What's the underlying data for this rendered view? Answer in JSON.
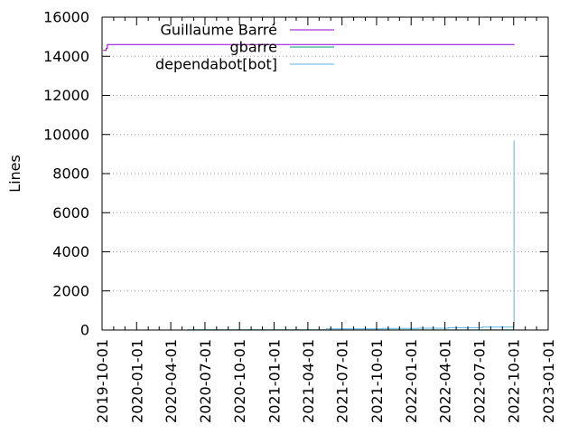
{
  "chart_data": {
    "type": "line",
    "title": "",
    "xlabel": "",
    "ylabel": "Lines",
    "xlim": [
      "2019-10-01",
      "2023-01-01"
    ],
    "ylim": [
      0,
      16000
    ],
    "y_ticks": [
      0,
      2000,
      4000,
      6000,
      8000,
      10000,
      12000,
      14000,
      16000
    ],
    "x_ticks": [
      "2019-10-01",
      "2020-01-01",
      "2020-04-01",
      "2020-07-01",
      "2020-10-01",
      "2021-01-01",
      "2021-04-01",
      "2021-07-01",
      "2021-10-01",
      "2022-01-01",
      "2022-04-01",
      "2022-07-01",
      "2022-10-01",
      "2023-01-01"
    ],
    "grid": "horizontal",
    "legend_position": "top-left",
    "series": [
      {
        "name": "Guillaume Barré",
        "color": "#9400d3",
        "step": true,
        "points": [
          [
            "2019-10-04",
            14300
          ],
          [
            "2019-10-12",
            14400
          ],
          [
            "2019-10-15",
            14600
          ],
          [
            "2022-10-03",
            14600
          ]
        ]
      },
      {
        "name": "gbarre",
        "color": "#009e73",
        "step": true,
        "points": [
          [
            "2020-05-15",
            5
          ],
          [
            "2022-10-03",
            5
          ]
        ]
      },
      {
        "name": "dependabot[bot]",
        "color": "#56b4e9",
        "step": true,
        "points": [
          [
            "2020-05-15",
            10
          ],
          [
            "2021-05-20",
            60
          ],
          [
            "2021-10-15",
            80
          ],
          [
            "2022-01-20",
            90
          ],
          [
            "2022-04-10",
            120
          ],
          [
            "2022-07-10",
            150
          ],
          [
            "2022-10-01",
            180
          ],
          [
            "2022-10-02",
            9700
          ]
        ]
      }
    ]
  }
}
